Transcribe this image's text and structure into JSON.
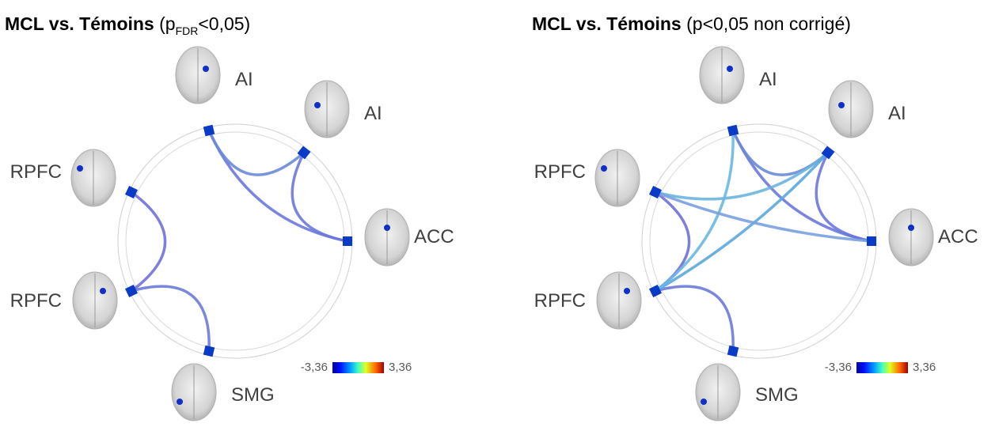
{
  "panels": [
    {
      "title": {
        "bold": "MCL vs. Témoins",
        "pre": "(p",
        "sub": "FDR",
        "post": "<0,05)"
      },
      "nodes": [
        {
          "label": "AI"
        },
        {
          "label": "AI"
        },
        {
          "label": "ACC"
        },
        {
          "label": "RPFC"
        },
        {
          "label": "RPFC"
        },
        {
          "label": "SMG"
        }
      ],
      "colorbar": {
        "min_label": "-3,36",
        "max_label": "3,36"
      }
    },
    {
      "title": {
        "bold": "MCL vs. Témoins",
        "pre": "(p<0,05 non corrigé)"
      },
      "nodes": [
        {
          "label": "AI"
        },
        {
          "label": "AI"
        },
        {
          "label": "ACC"
        },
        {
          "label": "RPFC"
        },
        {
          "label": "RPFC"
        },
        {
          "label": "SMG"
        }
      ],
      "colorbar": {
        "min_label": "-3,36",
        "max_label": "3,36"
      }
    }
  ]
}
